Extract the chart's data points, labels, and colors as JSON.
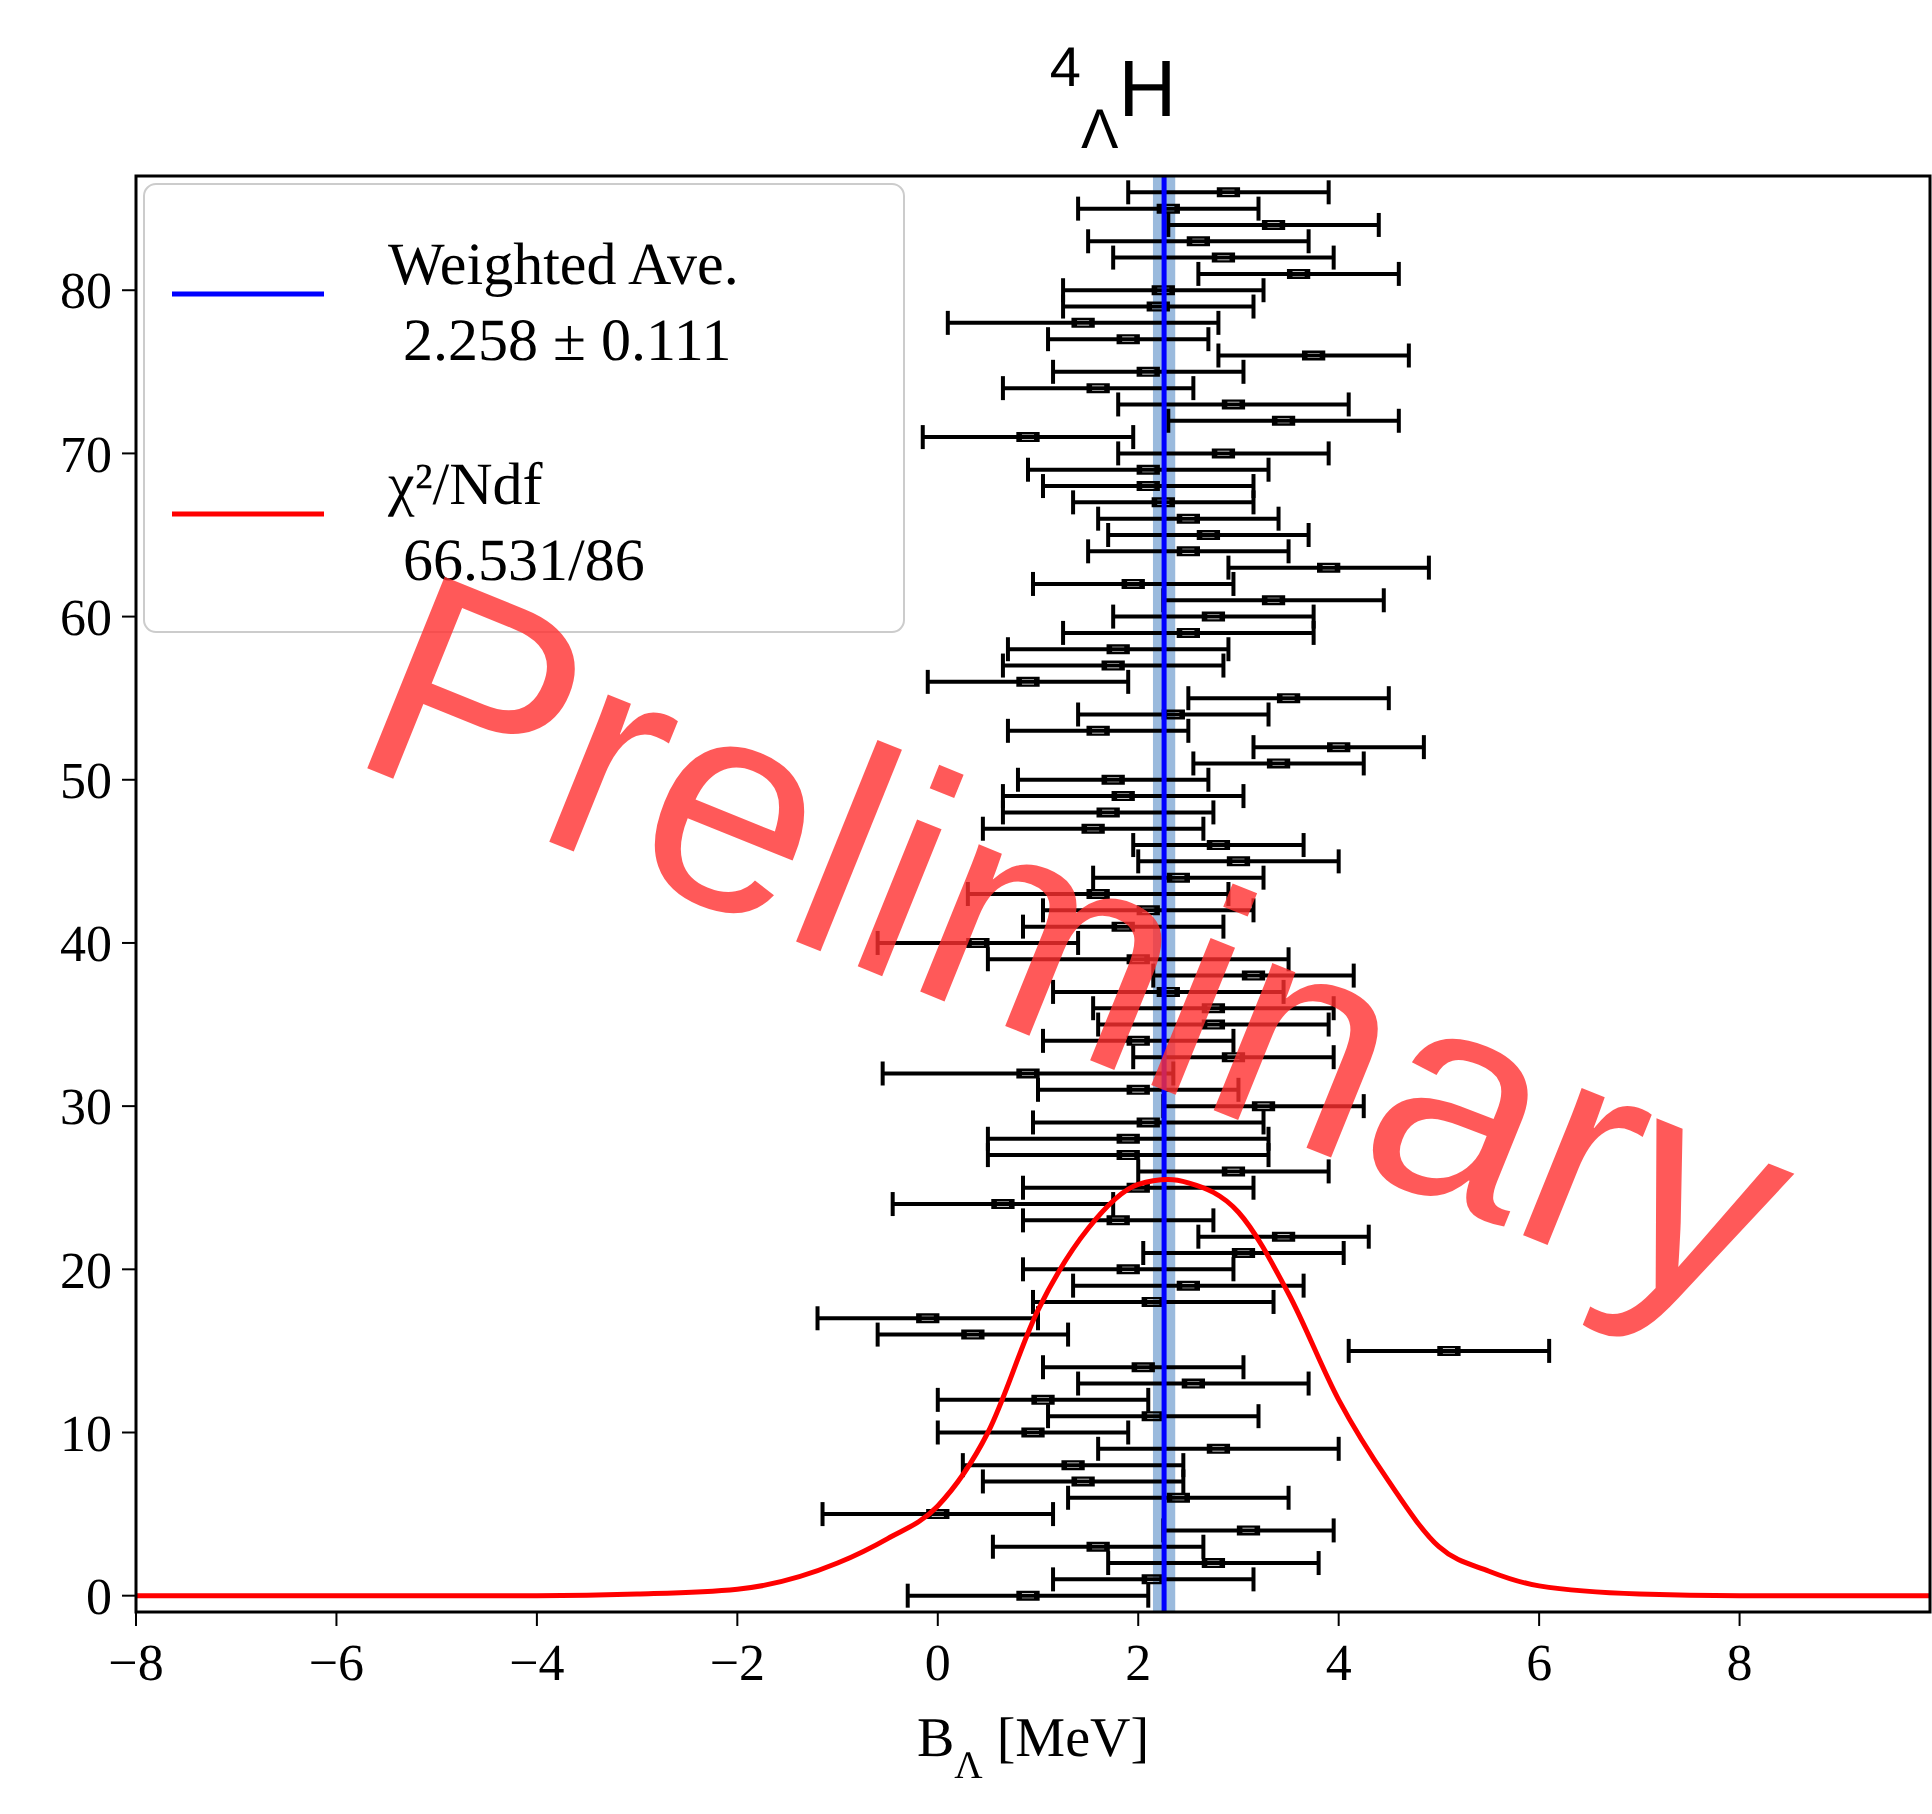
{
  "chart_data": {
    "type": "scatter",
    "title": "$^{4}$$_{Λ}$H",
    "xlabel": "B$_{Λ}$ [MeV]",
    "xlim": [
      -8,
      9.9
    ],
    "ylim": [
      -1,
      87
    ],
    "xticks": [
      {
        "value": -8,
        "label": "−8"
      },
      {
        "value": -6,
        "label": "−6"
      },
      {
        "value": -4,
        "label": "−4"
      },
      {
        "value": -2,
        "label": "−2"
      },
      0,
      2,
      4,
      6,
      8
    ],
    "yticks": [
      0,
      10,
      20,
      30,
      40,
      50,
      60,
      70,
      80
    ],
    "grid": false,
    "legend": "top left",
    "bands": [
      {
        "axis": "x",
        "from": 2.147,
        "to": 2.369,
        "color": "#8fb3d9"
      }
    ],
    "series": [
      {
        "type": "scatter",
        "color": "#000000",
        "marker": "square",
        "x": [
          0.9,
          2.15,
          2.75,
          1.6,
          3.1,
          0.0,
          2.4,
          1.45,
          1.35,
          2.8,
          0.95,
          2.15,
          1.05,
          2.55,
          2.05,
          5.1,
          0.35,
          -0.1,
          2.15,
          2.5,
          1.9,
          3.05,
          3.45,
          1.8,
          0.65,
          2.0,
          2.95,
          1.9,
          1.9,
          2.1,
          3.25,
          2.0,
          0.9,
          2.95,
          2.0,
          2.75,
          2.75,
          2.3,
          3.15,
          2.0,
          0.4,
          1.85,
          2.1,
          1.6,
          2.4,
          3.0,
          2.8,
          1.55,
          1.7,
          1.85,
          1.75,
          3.4,
          4.0,
          1.6,
          2.35,
          3.5,
          0.9,
          1.75,
          1.8,
          2.5,
          2.75,
          3.35,
          1.95,
          3.9,
          2.5,
          2.7,
          2.5,
          2.25,
          2.1,
          2.1,
          2.85,
          0.9,
          3.45,
          2.95,
          1.6,
          2.1,
          3.75,
          1.9,
          1.45,
          2.2,
          2.25,
          3.6,
          2.85,
          2.6,
          3.35,
          2.3,
          2.9
        ],
        "values": [
          0,
          1,
          2,
          3,
          4,
          5,
          6,
          7,
          8,
          9,
          10,
          11,
          12,
          13,
          14,
          15,
          16,
          17,
          18,
          19,
          20,
          21,
          22,
          23,
          24,
          25,
          26,
          27,
          28,
          29,
          30,
          31,
          32,
          33,
          34,
          35,
          36,
          37,
          38,
          39,
          40,
          41,
          42,
          43,
          44,
          45,
          46,
          47,
          48,
          49,
          50,
          51,
          52,
          53,
          54,
          55,
          56,
          57,
          58,
          59,
          60,
          61,
          62,
          63,
          64,
          65,
          66,
          67,
          68,
          69,
          70,
          71,
          72,
          73,
          74,
          75,
          76,
          77,
          78,
          79,
          80,
          81,
          82,
          83,
          84,
          85,
          86
        ],
        "xerrors": [
          1.2,
          1.0,
          1.05,
          1.05,
          0.85,
          1.15,
          1.1,
          1.0,
          1.1,
          1.2,
          0.95,
          1.05,
          1.05,
          1.15,
          1.0,
          1.0,
          0.95,
          1.1,
          1.2,
          1.15,
          1.05,
          1.0,
          0.85,
          0.95,
          1.1,
          1.15,
          0.95,
          1.4,
          1.4,
          1.15,
          1.0,
          1.0,
          1.45,
          1.0,
          0.95,
          1.15,
          1.2,
          1.15,
          1.0,
          1.5,
          1.0,
          1.0,
          1.05,
          1.3,
          0.85,
          1.0,
          0.85,
          1.1,
          1.05,
          1.2,
          0.95,
          0.85,
          0.85,
          0.9,
          0.95,
          1.0,
          1.0,
          1.1,
          1.1,
          1.25,
          1.0,
          1.1,
          1.0,
          1.0,
          1.0,
          1.0,
          0.9,
          0.9,
          1.05,
          1.2,
          1.05,
          1.05,
          1.15,
          1.15,
          0.95,
          0.95,
          0.95,
          0.8,
          1.35,
          0.95,
          1.0,
          1.0,
          1.1,
          1.1,
          1.05,
          0.9,
          1.0
        ]
      },
      {
        "type": "line",
        "name": "Weighted Ave.\n 2.258 ± 0.111",
        "color": "#0000ff",
        "x": [
          2.258,
          2.258
        ],
        "values": [
          -1,
          87
        ]
      },
      {
        "type": "line",
        "name": "χ²/Ndf\n 66.531/86",
        "color": "#ff0000",
        "line_style": "solid",
        "x": [
          -8,
          -4,
          -3,
          -2,
          -1,
          -0.5,
          0,
          0.5,
          1,
          1.5,
          2,
          2.3,
          2.5,
          3,
          3.5,
          4,
          4.5,
          5,
          5.5,
          6,
          7,
          8,
          9.9
        ],
        "values": [
          0,
          0,
          0.1,
          0.4,
          2.0,
          3.5,
          5.5,
          10,
          17.5,
          22.5,
          25.2,
          25.5,
          25.3,
          23.5,
          18.5,
          12,
          7,
          3,
          1.5,
          0.6,
          0.1,
          0,
          0
        ]
      }
    ],
    "annotations": [
      "Preliminary"
    ]
  }
}
